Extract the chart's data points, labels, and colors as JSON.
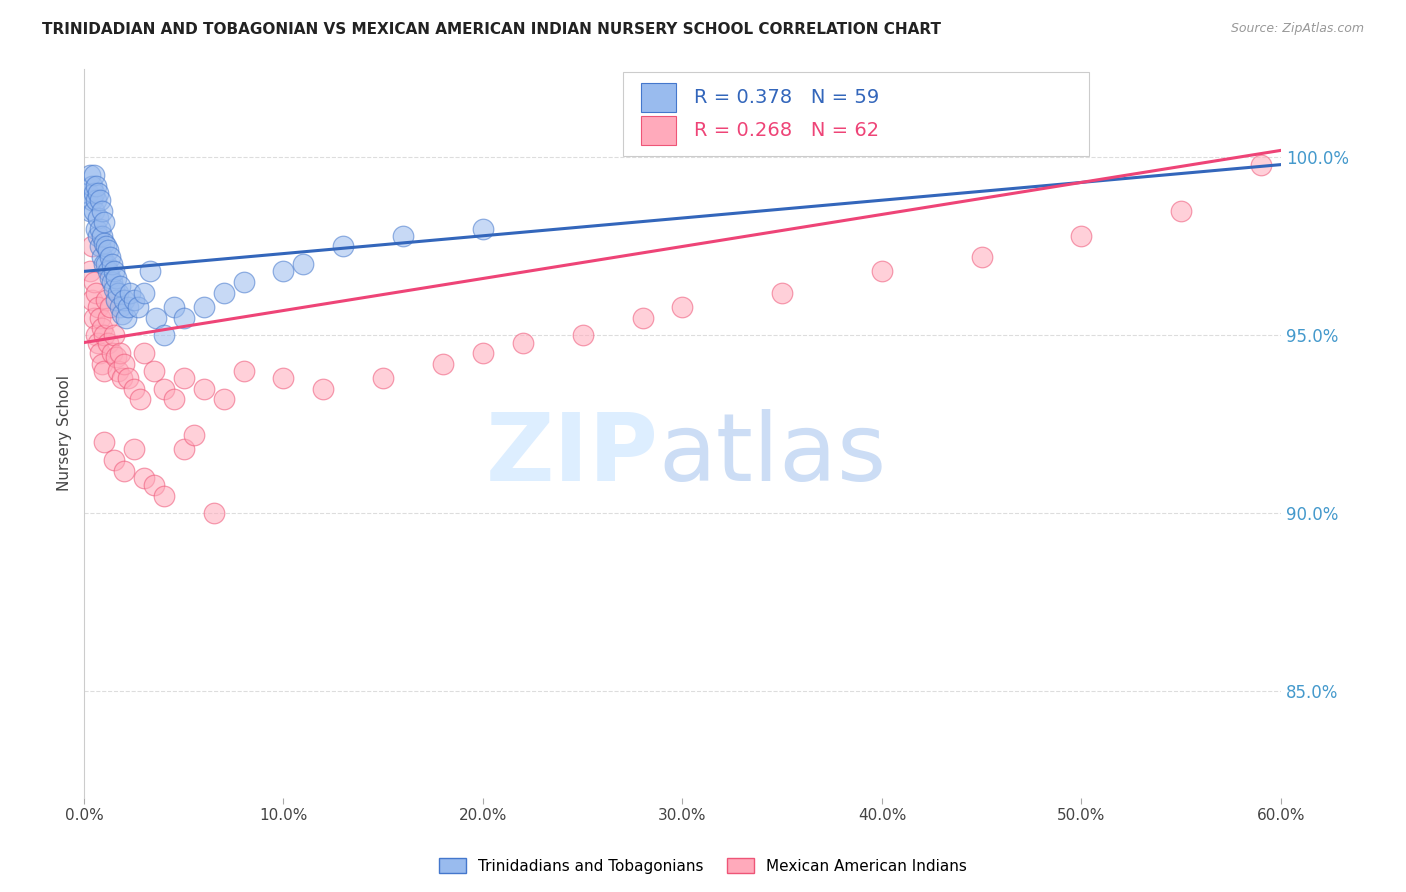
{
  "title": "TRINIDADIAN AND TOBAGONIAN VS MEXICAN AMERICAN INDIAN NURSERY SCHOOL CORRELATION CHART",
  "source": "Source: ZipAtlas.com",
  "ylabel": "Nursery School",
  "ytick_values": [
    1.0,
    0.95,
    0.9,
    0.85
  ],
  "xmin": 0.0,
  "xmax": 0.6,
  "ymin": 0.82,
  "ymax": 1.025,
  "blue_R": 0.378,
  "blue_N": 59,
  "pink_R": 0.268,
  "pink_N": 62,
  "legend_label_blue": "Trinidadians and Tobagonians",
  "legend_label_pink": "Mexican American Indians",
  "blue_fill_color": "#99bbee",
  "pink_fill_color": "#ffaabb",
  "blue_edge_color": "#4477cc",
  "pink_edge_color": "#ee5577",
  "blue_line_color": "#3366bb",
  "pink_line_color": "#ee4477",
  "watermark_zip_color": "#ddeeff",
  "watermark_atlas_color": "#ccddf5",
  "grid_color": "#dddddd",
  "right_tick_color": "#4499cc",
  "blue_scatter_x": [
    0.002,
    0.003,
    0.003,
    0.004,
    0.004,
    0.005,
    0.005,
    0.005,
    0.006,
    0.006,
    0.006,
    0.007,
    0.007,
    0.007,
    0.008,
    0.008,
    0.008,
    0.009,
    0.009,
    0.009,
    0.01,
    0.01,
    0.01,
    0.011,
    0.011,
    0.012,
    0.012,
    0.013,
    0.013,
    0.014,
    0.014,
    0.015,
    0.015,
    0.016,
    0.016,
    0.017,
    0.018,
    0.018,
    0.019,
    0.02,
    0.021,
    0.022,
    0.023,
    0.025,
    0.027,
    0.03,
    0.033,
    0.036,
    0.04,
    0.045,
    0.05,
    0.06,
    0.07,
    0.08,
    0.1,
    0.11,
    0.13,
    0.16,
    0.2
  ],
  "blue_scatter_y": [
    0.99,
    0.985,
    0.995,
    0.988,
    0.992,
    0.985,
    0.99,
    0.995,
    0.98,
    0.988,
    0.992,
    0.978,
    0.983,
    0.99,
    0.975,
    0.98,
    0.988,
    0.972,
    0.978,
    0.985,
    0.97,
    0.976,
    0.982,
    0.97,
    0.975,
    0.968,
    0.974,
    0.966,
    0.972,
    0.965,
    0.97,
    0.963,
    0.968,
    0.96,
    0.966,
    0.962,
    0.958,
    0.964,
    0.956,
    0.96,
    0.955,
    0.958,
    0.962,
    0.96,
    0.958,
    0.962,
    0.968,
    0.955,
    0.95,
    0.958,
    0.955,
    0.958,
    0.962,
    0.965,
    0.968,
    0.97,
    0.975,
    0.978,
    0.98
  ],
  "pink_scatter_x": [
    0.003,
    0.004,
    0.004,
    0.005,
    0.005,
    0.006,
    0.006,
    0.007,
    0.007,
    0.008,
    0.008,
    0.009,
    0.009,
    0.01,
    0.01,
    0.011,
    0.012,
    0.012,
    0.013,
    0.014,
    0.015,
    0.016,
    0.017,
    0.018,
    0.019,
    0.02,
    0.022,
    0.025,
    0.028,
    0.03,
    0.035,
    0.04,
    0.045,
    0.05,
    0.06,
    0.07,
    0.08,
    0.1,
    0.12,
    0.15,
    0.18,
    0.2,
    0.22,
    0.25,
    0.28,
    0.3,
    0.35,
    0.4,
    0.45,
    0.5,
    0.55,
    0.59,
    0.01,
    0.015,
    0.02,
    0.025,
    0.03,
    0.035,
    0.04,
    0.05,
    0.055,
    0.065
  ],
  "pink_scatter_y": [
    0.968,
    0.96,
    0.975,
    0.955,
    0.965,
    0.95,
    0.962,
    0.948,
    0.958,
    0.945,
    0.955,
    0.942,
    0.952,
    0.94,
    0.95,
    0.96,
    0.955,
    0.948,
    0.958,
    0.945,
    0.95,
    0.944,
    0.94,
    0.945,
    0.938,
    0.942,
    0.938,
    0.935,
    0.932,
    0.945,
    0.94,
    0.935,
    0.932,
    0.938,
    0.935,
    0.932,
    0.94,
    0.938,
    0.935,
    0.938,
    0.942,
    0.945,
    0.948,
    0.95,
    0.955,
    0.958,
    0.962,
    0.968,
    0.972,
    0.978,
    0.985,
    0.998,
    0.92,
    0.915,
    0.912,
    0.918,
    0.91,
    0.908,
    0.905,
    0.918,
    0.922,
    0.9
  ],
  "blue_trend_x0": 0.0,
  "blue_trend_x1": 0.6,
  "blue_trend_y0": 0.968,
  "blue_trend_y1": 0.998,
  "pink_trend_x0": 0.0,
  "pink_trend_x1": 0.6,
  "pink_trend_y0": 0.948,
  "pink_trend_y1": 1.002
}
